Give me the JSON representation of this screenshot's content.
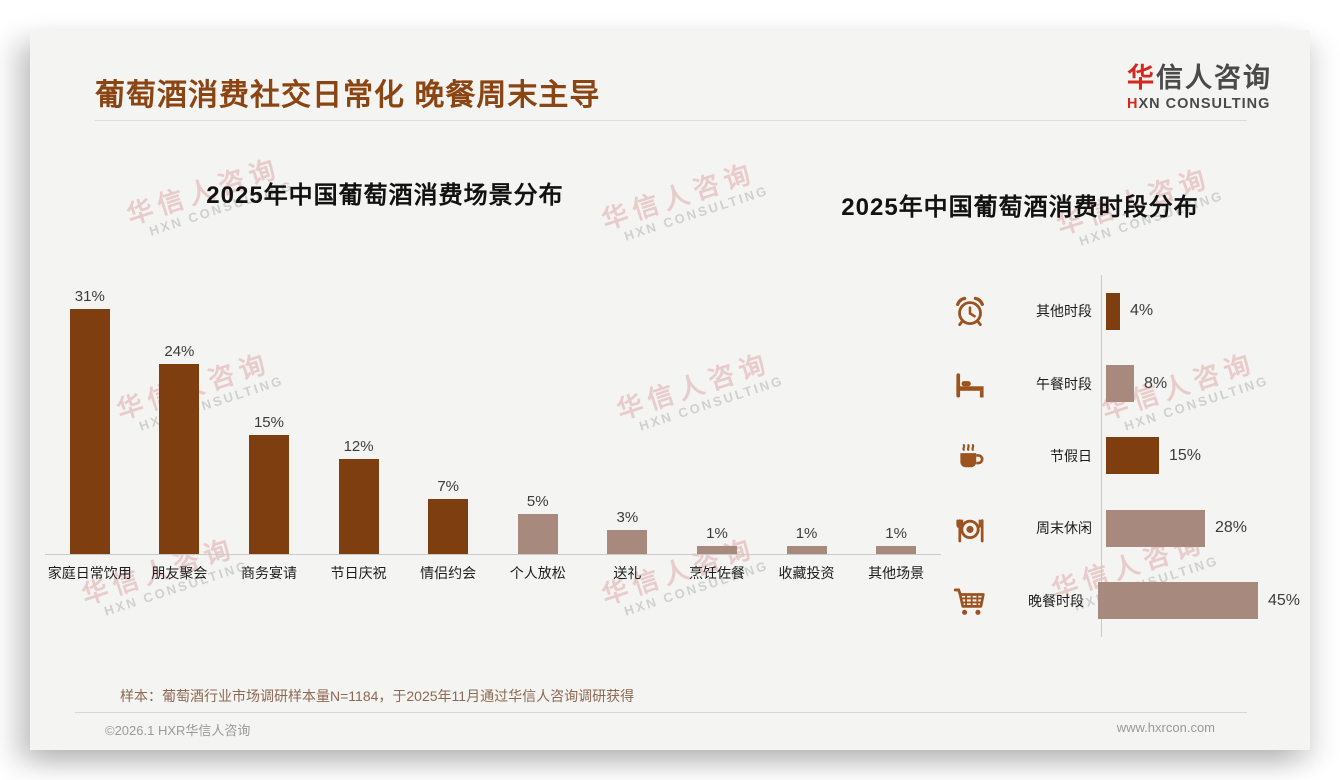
{
  "page": {
    "title": "葡萄酒消费社交日常化 晚餐周末主导"
  },
  "logo": {
    "cn_first": "华",
    "cn_rest": "信人咨询",
    "en_first": "H",
    "en_rest": "XN CONSULTING"
  },
  "watermark": {
    "line1": "华信人咨询",
    "line2": "HXN CONSULTING"
  },
  "colors": {
    "dark_bar": "#7f3e10",
    "light_bar": "#a8897d",
    "title_brown": "#8b4513",
    "logo_red": "#d3281e",
    "icon_brown": "#9c531f",
    "card_bg": "#f4f4f2"
  },
  "chart_data": [
    {
      "type": "bar",
      "orientation": "vertical",
      "title": "2025年中国葡萄酒消费场景分布",
      "unit": "%",
      "grid": false,
      "value_label_position": "above",
      "categories": [
        "家庭日常饮用",
        "朋友聚会",
        "商务宴请",
        "节日庆祝",
        "情侣约会",
        "个人放松",
        "送礼",
        "烹饪佐餐",
        "收藏投资",
        "其他场景"
      ],
      "values": [
        31,
        24,
        15,
        12,
        7,
        5,
        3,
        1,
        1,
        1
      ],
      "value_labels": [
        "31%",
        "24%",
        "15%",
        "12%",
        "7%",
        "5%",
        "3%",
        "1%",
        "1%",
        "1%"
      ],
      "tones": [
        "dark",
        "dark",
        "dark",
        "dark",
        "dark",
        "light",
        "light",
        "light",
        "light",
        "light"
      ]
    },
    {
      "type": "bar",
      "orientation": "horizontal",
      "title": "2025年中国葡萄酒消费时段分布",
      "unit": "%",
      "grid": false,
      "value_label_position": "right",
      "categories": [
        "其他时段",
        "午餐时段",
        "节假日",
        "周末休闲",
        "晚餐时段"
      ],
      "values": [
        4,
        8,
        15,
        28,
        45
      ],
      "value_labels": [
        "4%",
        "8%",
        "15%",
        "28%",
        "45%"
      ],
      "tones": [
        "dark",
        "light",
        "dark",
        "light",
        "light"
      ],
      "icons": [
        "alarm-clock-icon",
        "bed-icon",
        "coffee-icon",
        "dining-icon",
        "cart-icon"
      ]
    }
  ],
  "footer": {
    "sample_note": "样本：葡萄酒行业市场调研样本量N=1184，于2025年11月通过华信人咨询调研获得",
    "copyright": "©2026.1 HXR华信人咨询",
    "website": "www.hxrcon.com"
  }
}
